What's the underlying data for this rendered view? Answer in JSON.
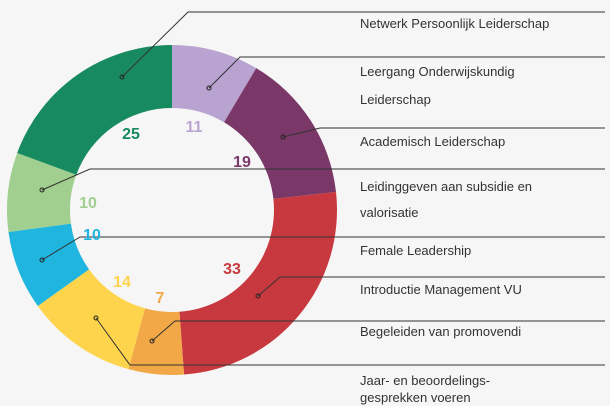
{
  "chart_data": {
    "type": "donut",
    "categories": [
      "Leergang Onderwijskundig Leiderschap",
      "Academisch Leiderschap",
      "Introductie Management VU",
      "Begeleiden van promovendi",
      "Jaar- en beoordelings-gesprekken voeren",
      "Female Leadership",
      "Leidinggeven aan subsidie en valorisatie",
      "Netwerk Persoonlijk Leiderschap"
    ],
    "values": [
      11,
      19,
      33,
      7,
      14,
      10,
      10,
      25
    ],
    "colors": [
      "#b9a3d0",
      "#7a3868",
      "#c8393f",
      "#f2a846",
      "#fdd44b",
      "#1fb5de",
      "#a0cf90",
      "#178a5f"
    ]
  }
}
